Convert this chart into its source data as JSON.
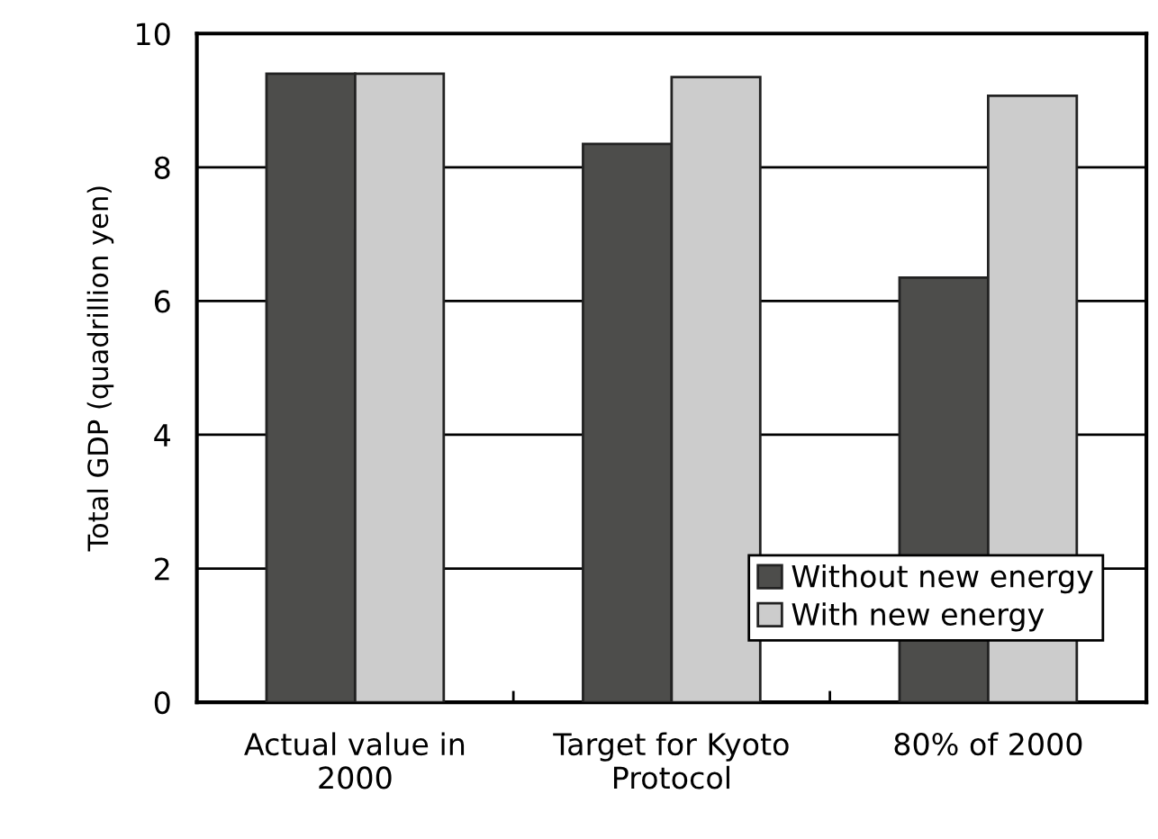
{
  "chart_data": {
    "type": "bar",
    "ylabel": "Total GDP (quadrillion yen)",
    "categories": [
      "Actual value in\n2000",
      "Target for Kyoto\nProtocol",
      "80% of 2000"
    ],
    "series": [
      {
        "name": "Without new energy",
        "color": "#4d4d4b",
        "values": [
          9.4,
          8.35,
          6.35
        ]
      },
      {
        "name": "With new energy",
        "color": "#cccccc",
        "values": [
          9.4,
          9.35,
          9.07
        ]
      }
    ],
    "ylim": [
      0,
      10
    ],
    "yticks": [
      0,
      2,
      4,
      6,
      8,
      10
    ],
    "grid": "y",
    "legend": "bottom right"
  }
}
